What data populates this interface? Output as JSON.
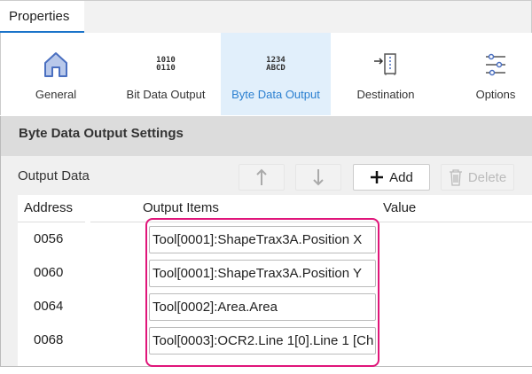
{
  "panel": {
    "tab_label": "Properties"
  },
  "ribbon": {
    "tabs": [
      {
        "label": "General",
        "icon": "home-icon",
        "selected": false
      },
      {
        "label": "Bit Data Output",
        "icon": "bit-data-icon",
        "icon_text": [
          "1010",
          "0110"
        ],
        "selected": false
      },
      {
        "label": "Byte Data Output",
        "icon": "byte-data-icon",
        "icon_text": [
          "1234",
          "ABCD"
        ],
        "selected": true
      },
      {
        "label": "Destination",
        "icon": "destination-icon",
        "selected": false
      },
      {
        "label": "Options",
        "icon": "sliders-icon",
        "selected": false
      }
    ]
  },
  "section": {
    "title": "Byte Data Output Settings"
  },
  "output": {
    "label": "Output Data",
    "buttons": {
      "up": "arrow-up-icon",
      "down": "arrow-down-icon",
      "add": "Add",
      "delete": "Delete"
    },
    "columns": [
      "Address",
      "Output Items",
      "Value"
    ],
    "rows": [
      {
        "address": "0056",
        "item": "Tool[0001]:ShapeTrax3A.Position X",
        "value": ""
      },
      {
        "address": "0060",
        "item": "Tool[0001]:ShapeTrax3A.Position Y",
        "value": ""
      },
      {
        "address": "0064",
        "item": "Tool[0002]:Area.Area",
        "value": ""
      },
      {
        "address": "0068",
        "item": "Tool[0003]:OCR2.Line 1[0].Line 1 [Ch",
        "value": ""
      }
    ]
  },
  "colors": {
    "accent": "#1a73c9",
    "selected_tab_bg": "#e1effb",
    "highlight": "#e0157a"
  }
}
